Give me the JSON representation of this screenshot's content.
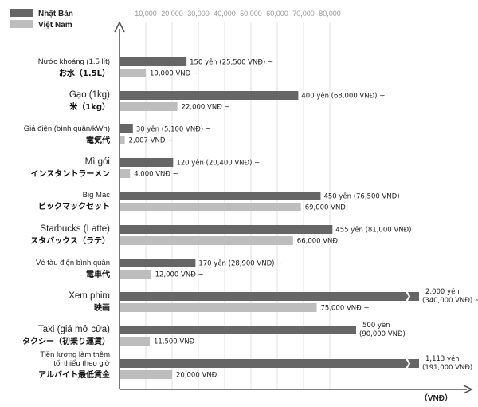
{
  "chart_data": {
    "type": "bar",
    "orientation": "horizontal",
    "unit_label": "（VNĐ）",
    "xlim": [
      0,
      85000
    ],
    "x_ticks": [
      "10,000",
      "20,000",
      "30,000",
      "40,000",
      "50,000",
      "60,000",
      "70,000",
      "80,000"
    ],
    "tick_values": [
      10000,
      20000,
      30000,
      40000,
      50000,
      60000,
      70000,
      80000
    ],
    "grid": true,
    "legend_placement": "top-left",
    "series": [
      {
        "name": "Nhật Bản",
        "color": "#666666"
      },
      {
        "name": "Việt Nam",
        "color": "#bdbdbd"
      }
    ],
    "categories": [
      {
        "lines_vn": [
          "Nước khoáng (1.5 lít)"
        ],
        "line_jp": "お水（1.5L）",
        "japan": 25500,
        "japan_label": "150 yên (25,500 VNĐ) ~",
        "vietnam": 10000,
        "vietnam_label": "10,000 VNĐ ~"
      },
      {
        "lines_vn": [
          "Gạo (1kg)"
        ],
        "line_jp": "米（1kg）",
        "japan": 68000,
        "japan_label": "400 yên (68,000 VNĐ) ~",
        "vietnam": 22000,
        "vietnam_label": "22,000 VNĐ ~"
      },
      {
        "lines_vn": [
          "Giá điện (bình quân/kWh)"
        ],
        "line_jp": "電気代",
        "japan": 5100,
        "japan_label": "30 yên (5,100 VNĐ) ~",
        "vietnam": 2007,
        "vietnam_label": "2,007 VNĐ ~"
      },
      {
        "lines_vn": [
          "Mì gói"
        ],
        "line_jp": "インスタントラーメン",
        "japan": 20400,
        "japan_label": "120 yên (20,400 VNĐ) ~",
        "vietnam": 4000,
        "vietnam_label": "4,000 VNĐ ~"
      },
      {
        "lines_vn": [
          "Big Mac"
        ],
        "line_jp": "ビックマックセット",
        "japan": 76500,
        "japan_label": "450 yên (76,500 VNĐ)",
        "vietnam": 69000,
        "vietnam_label": "69,000 VNĐ"
      },
      {
        "lines_vn": [
          "Starbucks (Latte)"
        ],
        "line_jp": "スタバックス（ラテ）",
        "japan": 81000,
        "japan_label": "455 yên (81,000 VNĐ)",
        "vietnam": 66000,
        "vietnam_label": "66,000 VNĐ"
      },
      {
        "lines_vn": [
          "Vé tàu điện bình quân"
        ],
        "line_jp": "電車代",
        "japan": 28900,
        "japan_label": "170 yên (28,900 VNĐ) ~",
        "vietnam": 12000,
        "vietnam_label": "12,000 VNĐ ~"
      },
      {
        "lines_vn": [
          "Xem phim"
        ],
        "line_jp": "映画",
        "japan": 340000,
        "japan_label_lines": [
          "2,000 yên",
          "(340,000 VNĐ) ~"
        ],
        "vietnam": 75000,
        "vietnam_label": "75,000 VNĐ ~"
      },
      {
        "lines_vn": [
          "Taxi (giá mở cửa)"
        ],
        "line_jp": "タクシー（初乗り運賃）",
        "japan": 90000,
        "japan_label_lines": [
          "500 yên",
          "(90,000 VNĐ)"
        ],
        "vietnam": 11500,
        "vietnam_label": "11,500 VNĐ"
      },
      {
        "lines_vn": [
          "Tiền lương làm thêm",
          "tối thiểu theo giờ"
        ],
        "line_jp": "アルバイト最低賃金",
        "japan": 191000,
        "japan_label_lines": [
          "1,113 yên",
          "(191,000 VNĐ)"
        ],
        "vietnam": 20000,
        "vietnam_label": "20,000 VNĐ"
      }
    ]
  }
}
